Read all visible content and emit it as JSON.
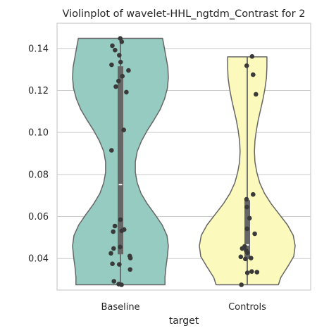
{
  "chart_data": {
    "type": "violin",
    "title": "Violinplot of wavelet-HHL_ngtdm_Contrast for 2",
    "xlabel": "target",
    "ylabel": "",
    "categories": [
      "Baseline",
      "Controls"
    ],
    "ylim": [
      0.025,
      0.152
    ],
    "yticks": [
      0.04,
      0.06,
      0.08,
      0.1,
      0.12,
      0.14
    ],
    "ytick_labels": [
      "0.04",
      "0.06",
      "0.08",
      "0.10",
      "0.12",
      "0.14"
    ],
    "grid": true,
    "series": [
      {
        "category": "Baseline",
        "color": "#95cbc0",
        "min": 0.0275,
        "max": 0.1448,
        "q1": 0.042,
        "median": 0.0752,
        "q3": 0.1315,
        "density_profile": [
          [
            0.0275,
            0.93
          ],
          [
            0.031,
            0.93
          ],
          [
            0.036,
            0.95
          ],
          [
            0.041,
            0.98
          ],
          [
            0.046,
            1.0
          ],
          [
            0.051,
            0.97
          ],
          [
            0.056,
            0.87
          ],
          [
            0.061,
            0.72
          ],
          [
            0.066,
            0.56
          ],
          [
            0.071,
            0.43
          ],
          [
            0.076,
            0.35
          ],
          [
            0.081,
            0.31
          ],
          [
            0.086,
            0.31
          ],
          [
            0.091,
            0.35
          ],
          [
            0.096,
            0.44
          ],
          [
            0.101,
            0.56
          ],
          [
            0.106,
            0.7
          ],
          [
            0.111,
            0.83
          ],
          [
            0.116,
            0.92
          ],
          [
            0.121,
            0.98
          ],
          [
            0.126,
            1.0
          ],
          [
            0.131,
            0.99
          ],
          [
            0.136,
            0.95
          ],
          [
            0.141,
            0.91
          ],
          [
            0.1448,
            0.88
          ]
        ],
        "points": [
          0.1448,
          0.1432,
          0.1413,
          0.1392,
          0.1368,
          0.1335,
          0.1322,
          0.1295,
          0.1268,
          0.1245,
          0.1218,
          0.1192,
          0.1012,
          0.0915,
          0.0585,
          0.0555,
          0.0538,
          0.0528,
          0.0532,
          0.0455,
          0.0448,
          0.0425,
          0.0412,
          0.0402,
          0.0375,
          0.0372,
          0.0348,
          0.0292,
          0.0278,
          0.0275
        ]
      },
      {
        "category": "Controls",
        "color": "#fbf9bb",
        "min": 0.0275,
        "max": 0.136,
        "q1": 0.0398,
        "median": 0.0465,
        "q3": 0.0678,
        "density_profile": [
          [
            0.0275,
            0.65
          ],
          [
            0.031,
            0.7
          ],
          [
            0.036,
            0.84
          ],
          [
            0.041,
            0.97
          ],
          [
            0.046,
            1.0
          ],
          [
            0.051,
            0.96
          ],
          [
            0.056,
            0.84
          ],
          [
            0.061,
            0.67
          ],
          [
            0.066,
            0.5
          ],
          [
            0.071,
            0.36
          ],
          [
            0.076,
            0.26
          ],
          [
            0.081,
            0.2
          ],
          [
            0.086,
            0.16
          ],
          [
            0.091,
            0.15
          ],
          [
            0.096,
            0.16
          ],
          [
            0.101,
            0.19
          ],
          [
            0.106,
            0.23
          ],
          [
            0.111,
            0.28
          ],
          [
            0.116,
            0.33
          ],
          [
            0.121,
            0.37
          ],
          [
            0.126,
            0.4
          ],
          [
            0.131,
            0.41
          ],
          [
            0.136,
            0.41
          ]
        ],
        "points": [
          0.1362,
          0.1318,
          0.1275,
          0.1182,
          0.0705,
          0.0682,
          0.0645,
          0.0592,
          0.0542,
          0.0518,
          0.0458,
          0.0448,
          0.0438,
          0.0428,
          0.0408,
          0.0402,
          0.0398,
          0.0338,
          0.0335,
          0.0332,
          0.0275
        ]
      }
    ]
  }
}
